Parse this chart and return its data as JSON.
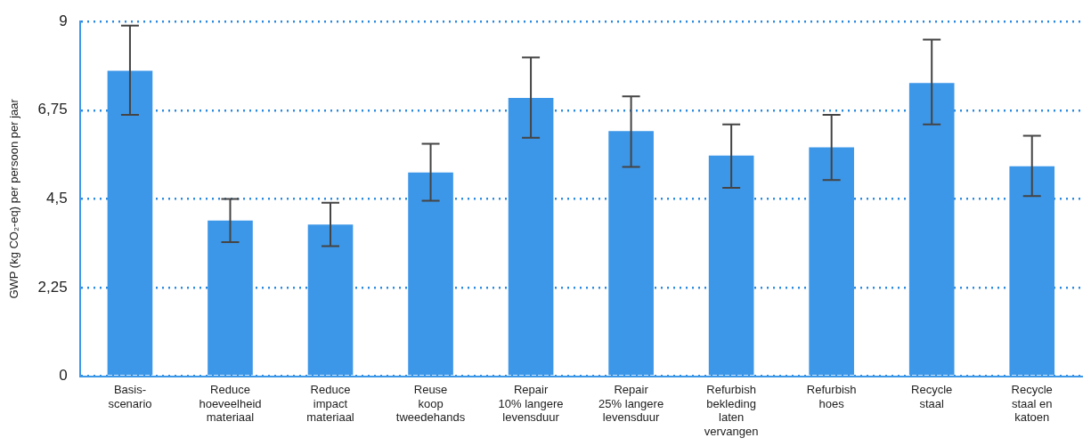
{
  "chart_data": {
    "type": "bar",
    "ylabel": "GWP (kg CO₂-eq) per persoon per jaar",
    "categories": [
      "Basis-\nscenario",
      "Reduce\nhoeveelheid\nmateriaal",
      "Reduce\nimpact\nmateriaal",
      "Reuse\nkoop\ntweedehands",
      "Repair\n10% langere\nlevensduur",
      "Repair\n25% langere\nlevensduur",
      "Refurbish\nbekleding\nlaten\nvervangen",
      "Refurbish\nhoes",
      "Recycle\nstaal",
      "Recycle\nstaal en\nkatoen"
    ],
    "values": [
      7.75,
      3.95,
      3.85,
      5.17,
      7.06,
      6.22,
      5.6,
      5.81,
      7.44,
      5.33
    ],
    "errors": [
      [
        6.63,
        8.9
      ],
      [
        3.4,
        4.5
      ],
      [
        3.3,
        4.4
      ],
      [
        4.45,
        5.9
      ],
      [
        6.05,
        8.09
      ],
      [
        5.31,
        7.1
      ],
      [
        4.78,
        6.39
      ],
      [
        4.98,
        6.63
      ],
      [
        6.39,
        8.54
      ],
      [
        4.57,
        6.1
      ]
    ],
    "color": "#3d97e8",
    "ylim": [
      0,
      9
    ],
    "yticks": [
      0,
      {
        "value": 2.25,
        "label": "2,25"
      },
      {
        "value": 4.5,
        "label": "4,5"
      },
      {
        "value": 6.75,
        "label": "6,75"
      },
      9
    ],
    "grid": "y",
    "line_style": "dotted",
    "legend": false
  }
}
